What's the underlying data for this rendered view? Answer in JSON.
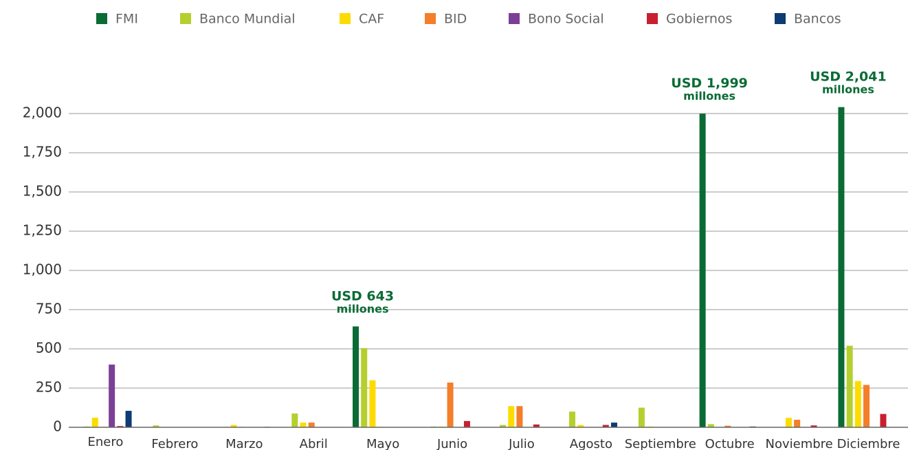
{
  "chart_data": {
    "type": "bar",
    "categories": [
      "Enero",
      "Febrero",
      "Marzo",
      "Abril",
      "Mayo",
      "Junio",
      "Julio",
      "Agosto",
      "Septiembre",
      "Octubre",
      "Noviembre",
      "Diciembre"
    ],
    "series": [
      {
        "name": "FMI",
        "color": "#0a6b35",
        "values": [
          0,
          0,
          0,
          0,
          643,
          0,
          0,
          0,
          0,
          1999,
          0,
          2041
        ],
        "value_labels": [
          null,
          null,
          null,
          null,
          "USD 643 millones",
          null,
          null,
          null,
          null,
          "USD 1,999 millones",
          null,
          "USD 2,041 millones"
        ]
      },
      {
        "name": "Banco Mundial",
        "color": "#b5cf2e",
        "values": [
          5,
          12,
          3,
          88,
          505,
          5,
          15,
          100,
          125,
          20,
          0,
          520
        ]
      },
      {
        "name": "CAF",
        "color": "#fcdc00",
        "values": [
          61,
          0,
          15,
          30,
          300,
          5,
          135,
          15,
          5,
          0,
          60,
          295
        ]
      },
      {
        "name": "BID",
        "color": "#f47e2a",
        "values": [
          3,
          0,
          3,
          30,
          3,
          285,
          135,
          0,
          0,
          10,
          48,
          270
        ]
      },
      {
        "name": "Bono Social",
        "color": "#7c3f98",
        "values": [
          400,
          0,
          0,
          0,
          2,
          0,
          0,
          0,
          0,
          0,
          0,
          0
        ]
      },
      {
        "name": "Gobiernos",
        "color": "#c8202f",
        "values": [
          8,
          0,
          0,
          0,
          0,
          40,
          18,
          15,
          0,
          0,
          12,
          85
        ]
      },
      {
        "name": "Bancos",
        "color": "#0d3b73",
        "values": [
          105,
          0,
          3,
          0,
          0,
          0,
          0,
          30,
          0,
          5,
          0,
          0
        ]
      }
    ],
    "ylim": [
      0,
      2000
    ],
    "yticks": [
      0,
      250,
      500,
      750,
      {
        "value": 1000,
        "label": "1,000"
      },
      {
        "value": 1250,
        "label": "1,250"
      },
      {
        "value": 1500,
        "label": "1,500"
      },
      {
        "value": 1750,
        "label": "1,750"
      },
      {
        "value": 2000,
        "label": "2,000"
      }
    ],
    "grid": true
  }
}
